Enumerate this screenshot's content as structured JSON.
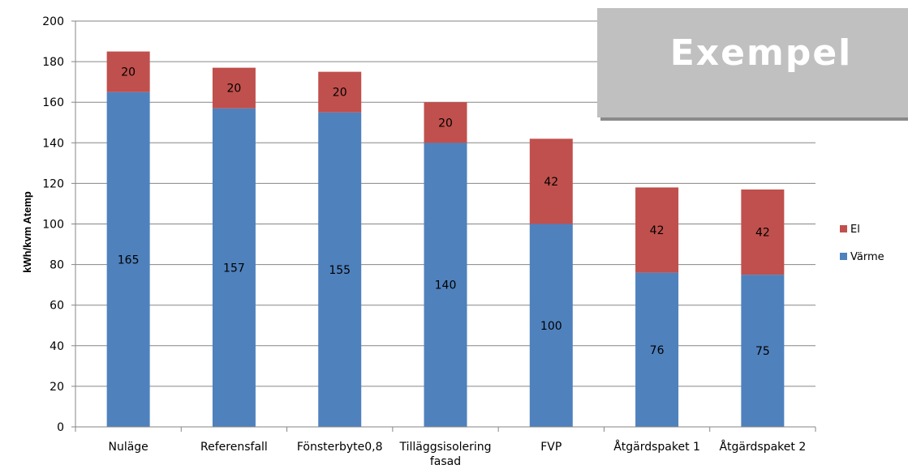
{
  "chart_data": {
    "type": "bar",
    "stacked": true,
    "categories": [
      "Nuläge",
      "Referensfall",
      "Fönsterbyte0,8",
      "Tilläggsisolering\nfasad",
      "FVP",
      "Åtgärdspaket 1",
      "Åtgärdspaket 2"
    ],
    "series": [
      {
        "name": "Värme",
        "color": "#4f81bd",
        "values": [
          165,
          157,
          155,
          140,
          100,
          76,
          75
        ],
        "labels": [
          "165",
          "157",
          "155",
          "140",
          "100",
          "76",
          "75"
        ]
      },
      {
        "name": "El",
        "color": "#c0504d",
        "values": [
          20,
          20,
          20,
          20,
          42,
          42,
          42
        ],
        "labels": [
          "20",
          "20",
          "20",
          "20",
          "42",
          "42",
          "42"
        ]
      }
    ],
    "title": "",
    "xlabel": "",
    "ylabel": "kWh/kvm Atemp",
    "ylim": [
      0,
      200
    ],
    "yticks": [
      0,
      20,
      40,
      60,
      80,
      100,
      120,
      140,
      160,
      180,
      200
    ],
    "grid": true,
    "legend_position": "right",
    "legend_order": [
      "El",
      "Värme"
    ]
  },
  "watermark": {
    "text": "Exempel",
    "color": "#c0c0c0"
  }
}
